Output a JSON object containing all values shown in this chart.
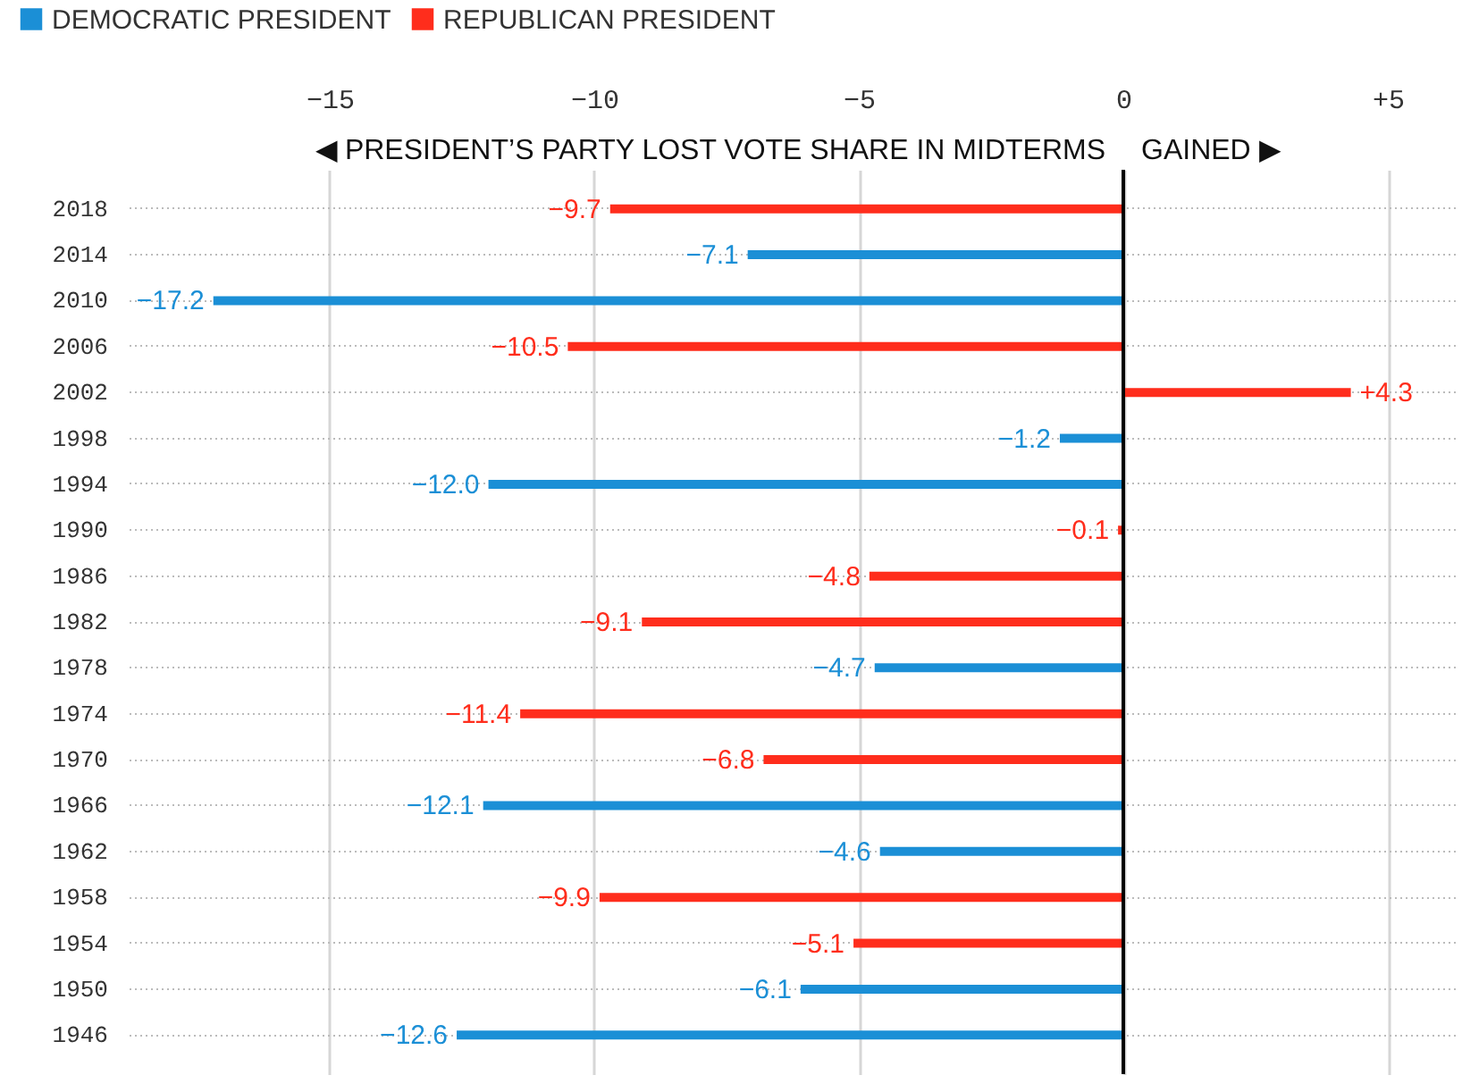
{
  "chart_data": {
    "type": "bar",
    "orientation": "horizontal",
    "categories": [
      "2018",
      "2014",
      "2010",
      "2006",
      "2002",
      "1998",
      "1994",
      "1990",
      "1986",
      "1982",
      "1978",
      "1974",
      "1970",
      "1966",
      "1962",
      "1958",
      "1954",
      "1950",
      "1946"
    ],
    "series": [
      {
        "name": "DEMOCRATIC PRESIDENT",
        "color": "#1b8fd6",
        "values": [
          null,
          -7.1,
          -17.2,
          null,
          null,
          -1.2,
          -12.0,
          null,
          null,
          null,
          -4.7,
          null,
          null,
          -12.1,
          -4.6,
          null,
          null,
          -6.1,
          -12.6
        ],
        "value_labels": [
          null,
          "−7.1",
          "−17.2",
          null,
          null,
          "−1.2",
          "−12.0",
          null,
          null,
          null,
          "−4.7",
          null,
          null,
          "−12.1",
          "−4.6",
          null,
          null,
          "−6.1",
          "−12.6"
        ]
      },
      {
        "name": "REPUBLICAN PRESIDENT",
        "color": "#ff2d1c",
        "values": [
          -9.7,
          null,
          null,
          -10.5,
          4.3,
          null,
          null,
          -0.1,
          -4.8,
          -9.1,
          null,
          -11.4,
          -6.8,
          null,
          null,
          -9.9,
          -5.1,
          null,
          null
        ],
        "value_labels": [
          "−9.7",
          null,
          null,
          "−10.5",
          "+4.3",
          null,
          null,
          "−0.1",
          "−4.8",
          "−9.1",
          null,
          "−11.4",
          "−6.8",
          null,
          null,
          "−9.9",
          "−5.1",
          null,
          null
        ]
      }
    ],
    "xlim": [
      -18.8,
      6.3
    ],
    "xticks": [
      {
        "value": -15,
        "label": "−15"
      },
      {
        "value": -10,
        "label": "−10"
      },
      {
        "value": -5,
        "label": "−5"
      },
      {
        "value": 0,
        "label": "0"
      },
      {
        "value": 5,
        "label": "+5"
      }
    ],
    "annotations": [
      "◀ PRESIDENT’S PARTY LOST VOTE SHARE IN MIDTERMS",
      "GAINED ▶"
    ],
    "ref_lines": [
      {
        "axis": "x",
        "value": 0,
        "color": "#000000"
      }
    ],
    "grid": true,
    "legend": "top left"
  }
}
